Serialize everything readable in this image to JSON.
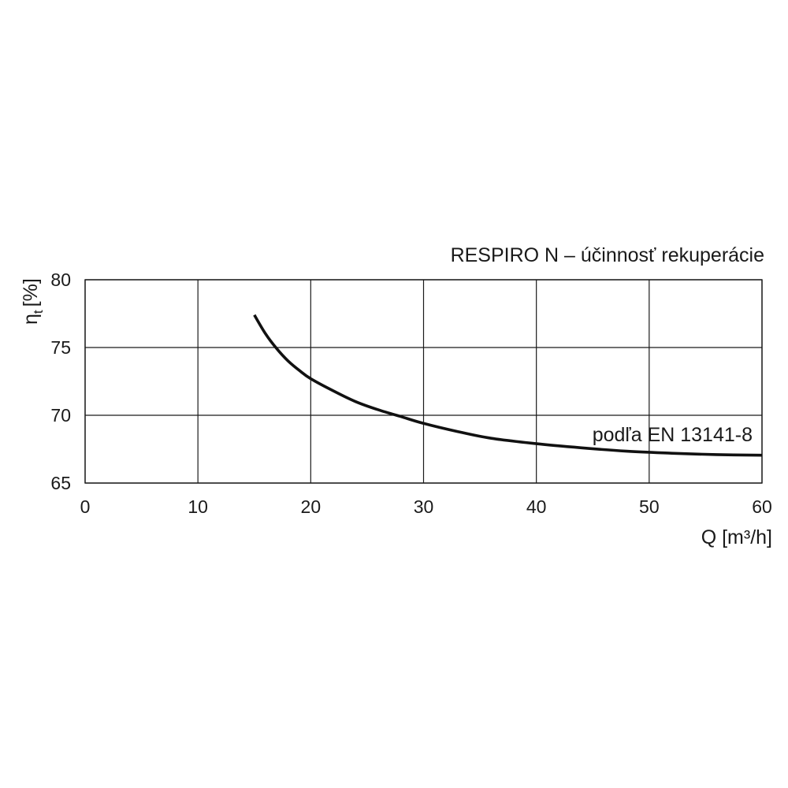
{
  "chart_data": {
    "type": "line",
    "title": "RESPIRO N – účinnosť rekuperácie",
    "xlabel": "Q [m³/h]",
    "ylabel": "ηt [%]",
    "ylabel_main": "η",
    "ylabel_sub": "t",
    "ylabel_unit": "[%]",
    "xlim": [
      0,
      60
    ],
    "ylim": [
      65,
      80
    ],
    "xticks": [
      0,
      10,
      20,
      30,
      40,
      50,
      60
    ],
    "yticks": [
      65,
      70,
      75,
      80
    ],
    "grid": true,
    "annotation": "podľa EN 13141-8",
    "series": [
      {
        "x": [
          15,
          16,
          17,
          18,
          19,
          20,
          22,
          24,
          26,
          28,
          30,
          33,
          36,
          40,
          44,
          48,
          52,
          56,
          60
        ],
        "values": [
          77.4,
          76.0,
          74.9,
          74.0,
          73.3,
          72.7,
          71.8,
          71.0,
          70.4,
          69.9,
          69.4,
          68.8,
          68.3,
          67.9,
          67.6,
          67.35,
          67.2,
          67.1,
          67.05
        ]
      }
    ],
    "line_color": "#111111",
    "grid_color": "#1a1a1a"
  }
}
